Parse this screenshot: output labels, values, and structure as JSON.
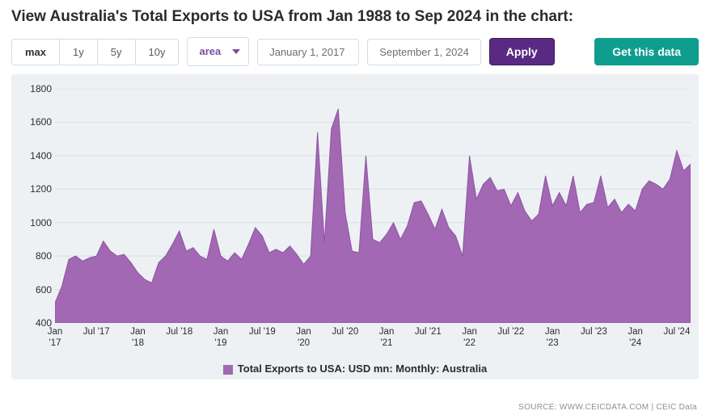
{
  "title": "View Australia's Total Exports to USA from Jan 1988 to Sep 2024 in the chart:",
  "range_buttons": [
    "max",
    "1y",
    "5y",
    "10y"
  ],
  "range_active_index": 0,
  "chart_type_label": "area",
  "date_from": "January 1, 2017",
  "date_to": "September 1, 2024",
  "apply_label": "Apply",
  "get_data_label": "Get this data",
  "legend_label": "Total Exports to USA: USD mn: Monthly: Australia",
  "source_text": "SOURCE: WWW.CEICDATA.COM | CEIC Data",
  "chart": {
    "type": "area",
    "background_color": "#edf1f4",
    "grid_color": "#d9dee3",
    "series_fill": "#a268b3",
    "series_stroke": "#8e55a3",
    "ylim": [
      400,
      1800
    ],
    "ytick_step": 200,
    "yticks": [
      400,
      600,
      800,
      1000,
      1200,
      1400,
      1600,
      1800
    ],
    "xticks": [
      {
        "pos": 0,
        "label": "Jan\n'17"
      },
      {
        "pos": 6,
        "label": "Jul '17"
      },
      {
        "pos": 12,
        "label": "Jan\n'18"
      },
      {
        "pos": 18,
        "label": "Jul '18"
      },
      {
        "pos": 24,
        "label": "Jan\n'19"
      },
      {
        "pos": 30,
        "label": "Jul '19"
      },
      {
        "pos": 36,
        "label": "Jan\n'20"
      },
      {
        "pos": 42,
        "label": "Jul '20"
      },
      {
        "pos": 48,
        "label": "Jan\n'21"
      },
      {
        "pos": 54,
        "label": "Jul '21"
      },
      {
        "pos": 60,
        "label": "Jan\n'22"
      },
      {
        "pos": 66,
        "label": "Jul '22"
      },
      {
        "pos": 72,
        "label": "Jan\n'23"
      },
      {
        "pos": 78,
        "label": "Jul '23"
      },
      {
        "pos": 84,
        "label": "Jan\n'24"
      },
      {
        "pos": 90,
        "label": "Jul '24"
      }
    ],
    "x_count": 93,
    "values": [
      520,
      620,
      780,
      800,
      770,
      790,
      800,
      890,
      830,
      800,
      810,
      760,
      700,
      660,
      640,
      760,
      800,
      870,
      950,
      830,
      850,
      800,
      780,
      960,
      800,
      770,
      820,
      780,
      870,
      970,
      920,
      820,
      840,
      820,
      860,
      810,
      750,
      800,
      1540,
      880,
      1560,
      1680,
      1060,
      830,
      820,
      1400,
      900,
      880,
      930,
      1000,
      900,
      980,
      1120,
      1130,
      1050,
      960,
      1080,
      970,
      920,
      800,
      1400,
      1140,
      1230,
      1270,
      1190,
      1200,
      1100,
      1180,
      1070,
      1010,
      1050,
      1280,
      1100,
      1180,
      1100,
      1280,
      1060,
      1110,
      1120,
      1280,
      1090,
      1140,
      1060,
      1110,
      1070,
      1200,
      1250,
      1230,
      1200,
      1260,
      1430,
      1310,
      1350
    ],
    "tick_fontsize": 12,
    "xtick_fontsize": 11.5,
    "legend_fontsize": 13
  }
}
